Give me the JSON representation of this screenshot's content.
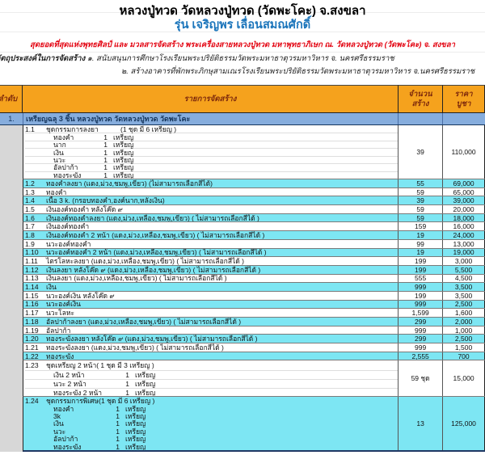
{
  "page": {
    "title": "หลวงปู่ทวด วัดหลวงปู่ทวด (วัดพะโคะ) จ.สงขลา",
    "subtitle": "รุ่น เจริญพร เลื่อนสมณศักดิ์",
    "tagline": "สุดยอดที่สุดแห่งพุทธศิลป์ และ มวลสารจัดสร้าง พระเครื่องสายหลวงปู่ทวด มหาพุทธาภิเษก ณ. วัดหลวงปู่ทวด (วัดพะโคะ) จ. สงขลา",
    "purpose_label": "วัตถุประสงค์ในการจัดสร้าง",
    "purpose_1": "๑. สนับสนุนการศึกษาโรงเรียนพระปริยัติธรรมวัดพระมหาธาตุวรมหาวิหาร  จ. นครศรีธรรมราช",
    "purpose_2": "๒. สร้างอาคารที่พักพระภิกษุสามเณรโรงเรียนพระปริยัติธรรมวัดพระมหาธาตุวรมหาวิหาร  จ.นครศรีธรรมราช"
  },
  "colors": {
    "header_bg": "#F5A21D",
    "header_text": "#7E2A0C",
    "section_bg": "#86ADDD",
    "section_text": "#17375E",
    "row_cyan": "#7DE6F3",
    "subtitle_blue": "#1B75BB",
    "tagline_red": "#E30613"
  },
  "table": {
    "headers": {
      "no": "ลำดับ",
      "item": "รายการจัดสร้าง",
      "qty_line1": "จำนวน",
      "qty_line2": "สร้าง",
      "price_line1": "ราคา",
      "price_line2": "บูชา"
    },
    "section": {
      "no": "1.",
      "title": "เหรียญฉลุ 3 ชิ้น หลวงปู่ทวด วัดหลวงปู่ทวด วัดพะโคะ"
    },
    "rows": [
      {
        "no": "1.1",
        "name": "ชุดกรรมการลงยา",
        "note": "(1 ชุด มี 6 เหรียญ )",
        "bg": "white",
        "qty": "39",
        "price": "110,000",
        "sub": [
          {
            "label": "ทองคำ",
            "qty": "1",
            "unit": "เหรียญ"
          },
          {
            "label": "นาก",
            "qty": "1",
            "unit": "เหรียญ"
          },
          {
            "label": "เงิน",
            "qty": "1",
            "unit": "เหรียญ"
          },
          {
            "label": "นวะ",
            "qty": "1",
            "unit": "เหรียญ"
          },
          {
            "label": "อัลปาก้า",
            "qty": "1",
            "unit": "เหรียญ"
          },
          {
            "label": "ทองระฆัง",
            "qty": "1",
            "unit": "เหรียญ"
          }
        ]
      },
      {
        "no": "1.2",
        "name": "ทองคำลงยา (แดง,ม่วง,ชมพู,เขียว) (ไม่สามารถเลือกสีได้)",
        "bg": "cyan",
        "qty": "55",
        "price": "69,000"
      },
      {
        "no": "1.3",
        "name": "ทองคำ",
        "bg": "white",
        "qty": "59",
        "price": "65,000"
      },
      {
        "no": "1.4",
        "name": "เนื้อ 3 k.   (กรอบทองคำ,องค์นาก,หลังเงิน)",
        "bg": "cyan",
        "qty": "39",
        "price": "39,000"
      },
      {
        "no": "1.5",
        "name": "เงินองค์ทองคำ หลังโค๊ด ๙",
        "bg": "white",
        "qty": "59",
        "price": "20,000"
      },
      {
        "no": "1.6",
        "name": "เงินองค์ทองคำลงยา     (แดง,ม่วง,เหลือง,ชมพู,เขียว) ( ไม่สามารถเลือกสีได้ )",
        "bg": "cyan",
        "qty": "59",
        "price": "18,000"
      },
      {
        "no": "1.7",
        "name": "เงินองค์ทองคำ",
        "bg": "white",
        "qty": "159",
        "price": "16,000"
      },
      {
        "no": "1.8",
        "name": "เงินองค์ทองคำ 2 หน้า    (แดง,ม่วง,เหลือง,ชมพู,เขียว) ( ไม่สามารถเลือกสีได้ )",
        "bg": "cyan",
        "qty": "19",
        "price": "24,000"
      },
      {
        "no": "1.9",
        "name": "นวะองค์ทองคำ",
        "bg": "white",
        "qty": "99",
        "price": "13,000"
      },
      {
        "no": "1.10",
        "name": "นวะองค์ทองคำ 2 หน้า   (แดง,ม่วง,เหลือง,ชมพู,เขียว) ( ไม่สามารถเลือกสีได้ )",
        "bg": "cyan",
        "qty": "19",
        "price": "19,000"
      },
      {
        "no": "1.11",
        "name": "ไตรโลหะลงยา    (แดง,ม่วง,เหลือง,ชมพู,เขียว) ( ไม่สามารถเลือกสีได้ )",
        "bg": "white",
        "qty": "199",
        "price": "3,000"
      },
      {
        "no": "1.12",
        "name": "เงินลงยา หลังโค๊ด ๙  (แดง,ม่วง,เหลือง,ชมพู,เขียว) ( ไม่สามารถเลือกสีได้ )",
        "bg": "cyan",
        "qty": "199",
        "price": "5,500"
      },
      {
        "no": "1.13",
        "name": "เงินลงยา    (แดง,ม่วง,เหลือง,ชมพู,เขียว) ( ไม่สามารถเลือกสีได้ )",
        "bg": "white",
        "qty": "555",
        "price": "4,500"
      },
      {
        "no": "1.14",
        "name": "เงิน",
        "bg": "cyan",
        "qty": "999",
        "price": "3,500"
      },
      {
        "no": "1.15",
        "name": "นวะองค์เงิน หลังโค๊ด ๙",
        "bg": "white",
        "qty": "199",
        "price": "3,500"
      },
      {
        "no": "1.16",
        "name": "นวะองค์เงิน",
        "bg": "cyan",
        "qty": "999",
        "price": "2,500"
      },
      {
        "no": "1.17",
        "name": "นวะโลหะ",
        "bg": "white",
        "qty": "1,599",
        "price": "1,600"
      },
      {
        "no": "1.18",
        "name": "อัลปาก้าลงยา  (แดง,ม่วง,เหลือง,ชมพู,เขียว) ( ไม่สามารถเลือกสีได้ )",
        "bg": "cyan",
        "qty": "299",
        "price": "2,000"
      },
      {
        "no": "1.19",
        "name": "อัลปาก้า",
        "bg": "white",
        "qty": "999",
        "price": "1,000"
      },
      {
        "no": "1.20",
        "name": "ทองระฆังลงยา  หลังโค๊ด ๙ (แดง,ม่วง,ชมพู,เขียว)  ( ไม่สามารถเลือกสีได้ )",
        "bg": "cyan",
        "qty": "299",
        "price": "2,500"
      },
      {
        "no": "1.21",
        "name": "ทองระฆังลงยา (แดง,ม่วง,ชมพู,เขียว)  ( ไม่สามารถเลือกสีได้ )",
        "bg": "white",
        "qty": "999",
        "price": "1,500"
      },
      {
        "no": "1.22",
        "name": "ทองระฆัง",
        "bg": "cyan",
        "qty": "2,555",
        "price": "700"
      },
      {
        "no": "1.23",
        "name": "ชุดเหรียญ 2 หน้า",
        "note": "( 1 ชุด มี 3 เหรียญ )",
        "bg": "white",
        "qty": "59 ชุด",
        "price": "15,000",
        "sub": [
          {
            "label": "เงิน 2 หน้า",
            "qty": "1",
            "unit": "เหรียญ"
          },
          {
            "label": "นวะ 2 หน้า",
            "qty": "1",
            "unit": "เหรียญ"
          },
          {
            "label": "ทองระฆัง 2 หน้า",
            "qty": "1",
            "unit": "เหรียญ"
          }
        ]
      },
      {
        "no": "1.24",
        "name": "ชุดกรรมการพิเศษ",
        "note": "(1 ชุด มี 6 เหรียญ )",
        "bg": "cyan",
        "qty": "13",
        "price": "125,000",
        "sub": [
          {
            "label": "ทองคำ",
            "qty": "1",
            "unit": "เหรียญ"
          },
          {
            "label": "3k",
            "qty": "1",
            "unit": "เหรียญ"
          },
          {
            "label": "เงิน",
            "qty": "1",
            "unit": "เหรียญ"
          },
          {
            "label": "นวะ",
            "qty": "1",
            "unit": "เหรียญ"
          },
          {
            "label": "อัลปาก้า",
            "qty": "1",
            "unit": "เหรียญ"
          },
          {
            "label": "ทองระฆัง",
            "qty": "1",
            "unit": "เหรียญ"
          }
        ]
      }
    ]
  }
}
